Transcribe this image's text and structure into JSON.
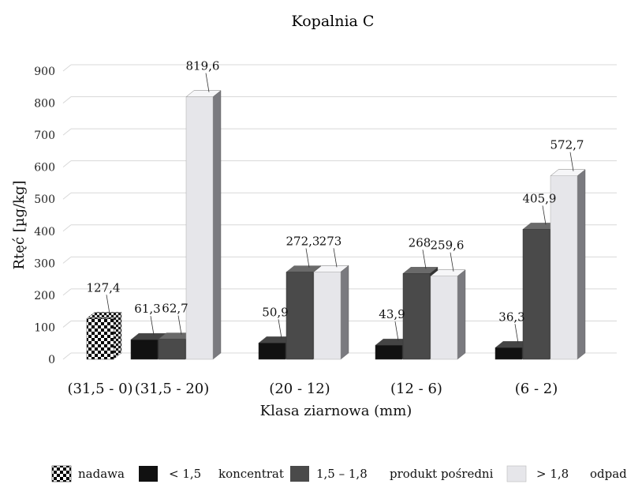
{
  "chart_data": {
    "type": "bar",
    "title": "Kopalnia C",
    "xlabel": "Klasa ziarnowa (mm)",
    "ylabel": "Rtęć [µg/kg]",
    "ylim": [
      0,
      900
    ],
    "yticks": [
      0,
      100,
      200,
      300,
      400,
      500,
      600,
      700,
      800,
      900
    ],
    "grid": true,
    "legend_position": "bottom",
    "categories": [
      "(31,5 - 0)",
      "(31,5 - 20)",
      "(20 - 12)",
      "(12 - 6)",
      "(6 - 2)"
    ],
    "series": [
      {
        "name": "nadawa",
        "values": [
          127.4,
          null,
          null,
          null,
          null
        ],
        "labels": [
          "127,4",
          "",
          "",
          "",
          ""
        ],
        "color": "#000000",
        "pattern": "checker"
      },
      {
        "name": "< 1,5",
        "values": [
          null,
          61.3,
          50.9,
          43.9,
          36.3
        ],
        "labels": [
          "",
          "61,3",
          "50,9",
          "43,9",
          "36,3"
        ],
        "color": "#111111"
      },
      {
        "name": "1,5 – 1,8",
        "values": [
          null,
          62.7,
          272.3,
          268,
          405.9
        ],
        "labels": [
          "",
          "62,7",
          "272,3",
          "268",
          "405,9"
        ],
        "color": "#4a4a4a"
      },
      {
        "name": "> 1,8",
        "values": [
          null,
          819.6,
          273,
          259.6,
          572.7
        ],
        "labels": [
          "",
          "819,6",
          "273",
          "259,6",
          "572,7"
        ],
        "color": "#e6e6ea"
      }
    ],
    "legend_extra": [
      "koncentrat",
      "produkt pośredni",
      "odpad"
    ]
  }
}
